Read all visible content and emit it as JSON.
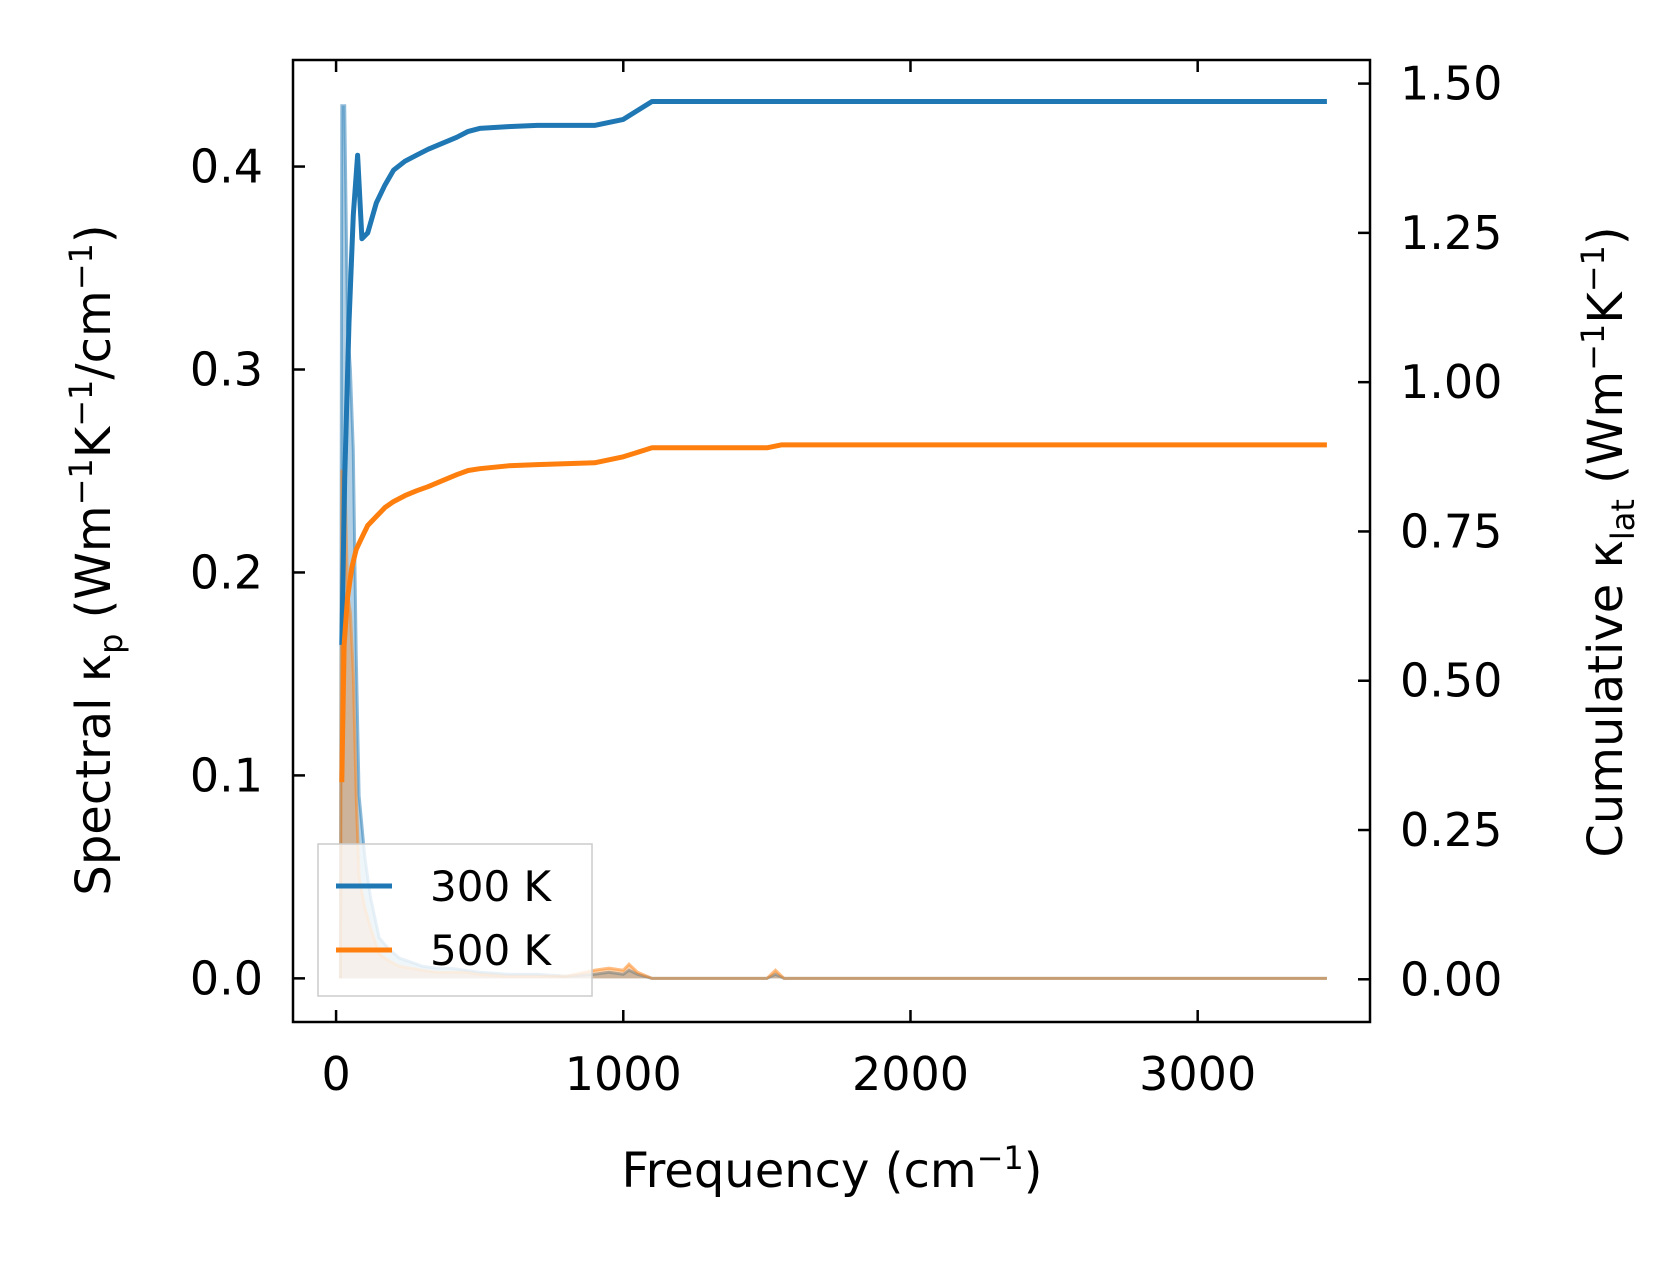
{
  "chart_data": {
    "type": "line",
    "x_axis": {
      "label_main": "Frequency (cm",
      "label_sup": "−1",
      "label_tail": ")",
      "range": [
        -150,
        3600
      ],
      "ticks": [
        0,
        1000,
        2000,
        3000
      ],
      "tick_labels": [
        "0",
        "1000",
        "2000",
        "3000"
      ]
    },
    "y_left": {
      "label_main": "Spectral κ",
      "label_sub": "p",
      "label_unit_1": " (Wm",
      "label_sup_1": "−1",
      "label_unit_2": "K",
      "label_sup_2": "−1",
      "label_unit_3": "/cm",
      "label_sup_3": "−1",
      "label_unit_4": ")",
      "range": [
        -0.0215,
        0.4525
      ],
      "ticks": [
        0.0,
        0.1,
        0.2,
        0.3,
        0.4
      ],
      "tick_labels": [
        "0.0",
        "0.1",
        "0.2",
        "0.3",
        "0.4"
      ]
    },
    "y_right": {
      "label_main": "Cumulative κ",
      "label_sub": "lat",
      "label_unit_1": " (Wm",
      "label_sup_1": "−1",
      "label_unit_2": "K",
      "label_sup_2": "−1",
      "label_unit_3": ")",
      "range": [
        -0.0715,
        1.5395
      ],
      "ticks": [
        0.0,
        0.25,
        0.5,
        0.75,
        1.0,
        1.25,
        1.5
      ],
      "tick_labels": [
        "0.00",
        "0.25",
        "0.50",
        "0.75",
        "1.00",
        "1.25",
        "1.50"
      ]
    },
    "legend": {
      "placement": "lower-left"
    },
    "grid": false,
    "series": [
      {
        "name": "300 K",
        "color": "#1f77b4",
        "cumulative": {
          "x": [
            20,
            30,
            45,
            60,
            75,
            90,
            110,
            140,
            170,
            200,
            240,
            280,
            320,
            370,
            420,
            460,
            500,
            600,
            700,
            900,
            1000,
            1100,
            1500,
            2000,
            3450
          ],
          "y": [
            0.56,
            0.84,
            1.1,
            1.28,
            1.38,
            1.24,
            1.25,
            1.3,
            1.33,
            1.355,
            1.37,
            1.38,
            1.39,
            1.4,
            1.41,
            1.42,
            1.425,
            1.428,
            1.43,
            1.43,
            1.44,
            1.47,
            1.47,
            1.47,
            1.47
          ]
        },
        "spectral": {
          "x": [
            15,
            20,
            30,
            40,
            50,
            60,
            70,
            80,
            100,
            120,
            150,
            180,
            220,
            260,
            300,
            350,
            400,
            450,
            500,
            600,
            700,
            800,
            900,
            950,
            1000,
            1020,
            1050,
            1100,
            1500,
            1530,
            1560,
            2000,
            3450
          ],
          "y": [
            0.0,
            0.43,
            0.43,
            0.32,
            0.3,
            0.26,
            0.16,
            0.09,
            0.06,
            0.04,
            0.02,
            0.015,
            0.01,
            0.008,
            0.006,
            0.005,
            0.005,
            0.004,
            0.003,
            0.002,
            0.002,
            0.001,
            0.002,
            0.003,
            0.002,
            0.004,
            0.002,
            0.0,
            0.0,
            0.002,
            0.0,
            0.0,
            0.0
          ]
        }
      },
      {
        "name": "500 K",
        "color": "#ff7f0e",
        "cumulative": {
          "x": [
            20,
            28,
            40,
            55,
            70,
            90,
            110,
            140,
            170,
            200,
            240,
            280,
            320,
            370,
            420,
            460,
            500,
            600,
            700,
            900,
            1000,
            1100,
            1500,
            1550,
            2000,
            3450
          ],
          "y": [
            0.33,
            0.56,
            0.64,
            0.69,
            0.72,
            0.74,
            0.76,
            0.775,
            0.79,
            0.8,
            0.81,
            0.818,
            0.825,
            0.835,
            0.845,
            0.852,
            0.855,
            0.86,
            0.862,
            0.865,
            0.875,
            0.89,
            0.89,
            0.895,
            0.895,
            0.895
          ]
        },
        "spectral": {
          "x": [
            15,
            20,
            30,
            40,
            50,
            60,
            70,
            80,
            100,
            120,
            150,
            180,
            220,
            260,
            300,
            350,
            400,
            450,
            500,
            600,
            700,
            800,
            900,
            950,
            1000,
            1020,
            1050,
            1100,
            1500,
            1530,
            1560,
            2000,
            3450
          ],
          "y": [
            0.0,
            0.25,
            0.25,
            0.19,
            0.18,
            0.15,
            0.09,
            0.05,
            0.035,
            0.025,
            0.012,
            0.009,
            0.006,
            0.005,
            0.004,
            0.003,
            0.003,
            0.003,
            0.002,
            0.001,
            0.001,
            0.001,
            0.004,
            0.005,
            0.004,
            0.007,
            0.003,
            0.0,
            0.0,
            0.004,
            0.0,
            0.0,
            0.0
          ]
        }
      }
    ]
  }
}
